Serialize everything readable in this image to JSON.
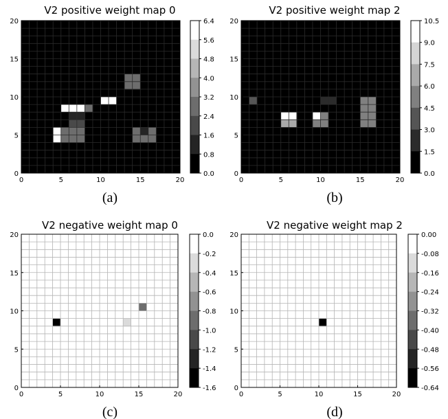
{
  "chart_data": [
    {
      "type": "heatmap",
      "title": "V2 positive weight map 0",
      "caption": "(a)",
      "xlim": [
        0,
        20
      ],
      "ylim": [
        0,
        20
      ],
      "xticks": [
        "0",
        "5",
        "10",
        "15",
        "20"
      ],
      "yticks": [
        "0",
        "5",
        "10",
        "15",
        "20"
      ],
      "background_value": 0.0,
      "vmin": 0.0,
      "vmax": 6.4,
      "colorbar_ticks": [
        "6.4",
        "5.6",
        "4.8",
        "4.0",
        "3.2",
        "2.4",
        "1.6",
        "0.8",
        "0.0"
      ],
      "grid": "dark",
      "cells": [
        [
          13,
          12,
          2.4
        ],
        [
          14,
          12,
          2.4
        ],
        [
          13,
          11,
          2.4
        ],
        [
          14,
          11,
          2.4
        ],
        [
          16,
          11,
          0.3
        ],
        [
          9,
          10,
          0.6
        ],
        [
          10,
          9,
          5.6
        ],
        [
          11,
          9,
          5.6
        ],
        [
          16,
          10,
          0.3
        ],
        [
          16,
          9,
          0.3
        ],
        [
          5,
          8,
          5.6
        ],
        [
          6,
          8,
          5.6
        ],
        [
          7,
          8,
          5.6
        ],
        [
          8,
          8,
          2.4
        ],
        [
          3,
          7,
          0.3
        ],
        [
          6,
          7,
          0.8
        ],
        [
          7,
          7,
          0.8
        ],
        [
          14,
          7,
          0.6
        ],
        [
          3,
          6,
          0.3
        ],
        [
          6,
          6,
          1.6
        ],
        [
          7,
          6,
          1.6
        ],
        [
          14,
          6,
          0.6
        ],
        [
          3,
          5,
          0.3
        ],
        [
          4,
          5,
          6.4
        ],
        [
          5,
          5,
          2.4
        ],
        [
          6,
          5,
          2.4
        ],
        [
          7,
          5,
          2.4
        ],
        [
          14,
          5,
          2.4
        ],
        [
          15,
          5,
          0.8
        ],
        [
          16,
          5,
          2.4
        ],
        [
          3,
          4,
          0.3
        ],
        [
          4,
          4,
          6.4
        ],
        [
          5,
          4,
          2.4
        ],
        [
          6,
          4,
          2.4
        ],
        [
          7,
          4,
          2.4
        ],
        [
          14,
          4,
          2.4
        ],
        [
          15,
          4,
          2.4
        ],
        [
          16,
          4,
          2.4
        ]
      ]
    },
    {
      "type": "heatmap",
      "title": "V2 positive weight map 2",
      "caption": "(b)",
      "xlim": [
        0,
        20
      ],
      "ylim": [
        0,
        20
      ],
      "xticks": [
        "0",
        "5",
        "10",
        "15",
        "20"
      ],
      "yticks": [
        "0",
        "5",
        "10",
        "15",
        "20"
      ],
      "background_value": 0.0,
      "vmin": 0.0,
      "vmax": 10.5,
      "colorbar_ticks": [
        "10.5",
        "9.0",
        "7.5",
        "6.0",
        "4.5",
        "3.0",
        "1.5",
        "0.0"
      ],
      "grid": "dark",
      "cells": [
        [
          1,
          9,
          3.0
        ],
        [
          10,
          9,
          1.5
        ],
        [
          11,
          9,
          1.5
        ],
        [
          15,
          9,
          4.5
        ],
        [
          16,
          9,
          4.5
        ],
        [
          15,
          8,
          4.5
        ],
        [
          16,
          8,
          4.5
        ],
        [
          15,
          7,
          4.5
        ],
        [
          16,
          7,
          4.5
        ],
        [
          15,
          6,
          4.5
        ],
        [
          16,
          6,
          4.5
        ],
        [
          5,
          7,
          10.5
        ],
        [
          6,
          7,
          10.5
        ],
        [
          9,
          7,
          9.0
        ],
        [
          10,
          7,
          4.5
        ],
        [
          5,
          6,
          6.0
        ],
        [
          6,
          6,
          6.0
        ],
        [
          9,
          6,
          4.5
        ],
        [
          10,
          6,
          4.5
        ]
      ]
    },
    {
      "type": "heatmap",
      "title": "V2 negative weight map 0",
      "caption": "(c)",
      "xlim": [
        0,
        20
      ],
      "ylim": [
        0,
        20
      ],
      "xticks": [
        "0",
        "5",
        "10",
        "15",
        "20"
      ],
      "yticks": [
        "0",
        "5",
        "10",
        "15",
        "20"
      ],
      "background_value": 0.0,
      "vmin": -1.6,
      "vmax": 0.0,
      "colorbar_ticks": [
        "0.0",
        "-0.2",
        "-0.4",
        "-0.6",
        "-0.8",
        "-1.0",
        "-1.2",
        "-1.4",
        "-1.6"
      ],
      "grid": "light",
      "cells": [
        [
          9,
          11,
          -0.2
        ],
        [
          15,
          10,
          -1.0
        ],
        [
          4,
          8,
          -1.6
        ],
        [
          13,
          8,
          -0.4
        ]
      ]
    },
    {
      "type": "heatmap",
      "title": "V2 negative weight map 2",
      "caption": "(d)",
      "xlim": [
        0,
        20
      ],
      "ylim": [
        0,
        20
      ],
      "xticks": [
        "0",
        "5",
        "10",
        "15",
        "20"
      ],
      "yticks": [
        "0",
        "5",
        "10",
        "15",
        "20"
      ],
      "background_value": 0.0,
      "vmin": -0.64,
      "vmax": 0.0,
      "colorbar_ticks": [
        "0.00",
        "-0.08",
        "-0.16",
        "-0.24",
        "-0.32",
        "-0.40",
        "-0.48",
        "-0.56",
        "-0.64"
      ],
      "grid": "light",
      "cells": [
        [
          1,
          10,
          -0.08
        ],
        [
          10,
          8,
          -0.64
        ]
      ]
    }
  ]
}
